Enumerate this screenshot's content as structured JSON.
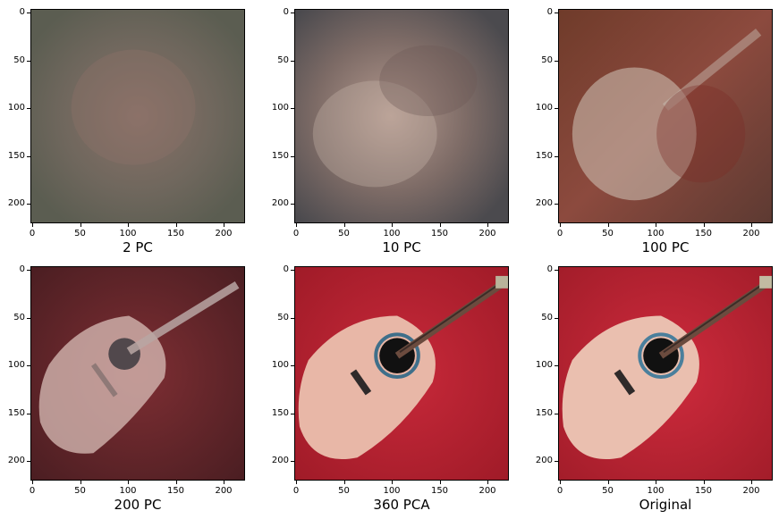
{
  "panels": [
    {
      "caption": "2 PC",
      "variant": "pc2"
    },
    {
      "caption": "10 PC",
      "variant": "pc10"
    },
    {
      "caption": "100 PC",
      "variant": "pc100"
    },
    {
      "caption": "200 PC",
      "variant": "pc200"
    },
    {
      "caption": "360 PCA",
      "variant": "pc360"
    },
    {
      "caption": "Original",
      "variant": "orig"
    }
  ],
  "axis": {
    "x_ticks": [
      "0",
      "50",
      "100",
      "150",
      "200"
    ],
    "y_ticks": [
      "0",
      "50",
      "100",
      "150",
      "200"
    ]
  },
  "colors": {
    "background_red": "#b81f2b",
    "guitar_body": "#e6b6a6",
    "muddy_gray": "#6a635a"
  }
}
